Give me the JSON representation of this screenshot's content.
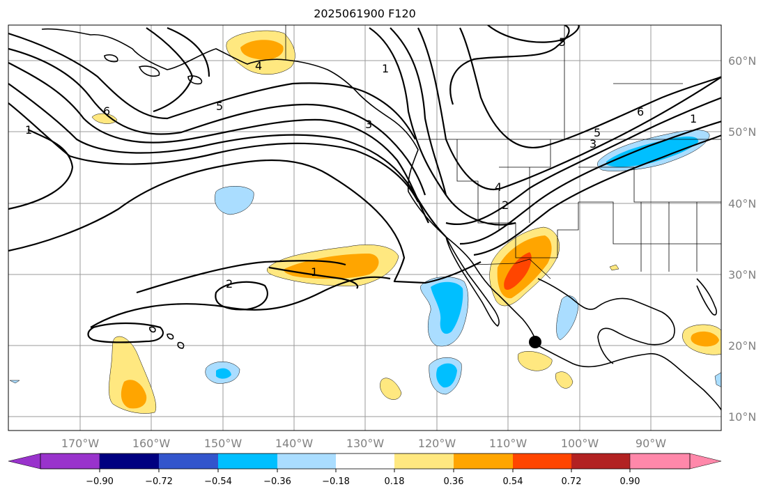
{
  "title": "2025061900 F120",
  "lat_labels": [
    "60°N",
    "50°N",
    "40°N",
    "30°N",
    "20°N",
    "10°N"
  ],
  "lon_labels": [
    "170°W",
    "160°W",
    "150°W",
    "140°W",
    "130°W",
    "120°W",
    "110°W",
    "100°W",
    "90°W"
  ],
  "contour_labels": [
    "6",
    "1",
    "5",
    "4",
    "3",
    "2",
    "1",
    "2",
    "4",
    "3",
    "5",
    "6",
    "1",
    "5",
    "1"
  ],
  "colorbar": {
    "tick_labels": [
      "−0.90",
      "−0.72",
      "−0.54",
      "−0.36",
      "−0.18",
      "0.18",
      "0.36",
      "0.54",
      "0.72",
      "0.90"
    ],
    "colors": [
      "#9933cc",
      "#000080",
      "#3355cc",
      "#00bfff",
      "#aaddff",
      "#ffffff",
      "#ffe880",
      "#ffa500",
      "#ff4500",
      "#b22222",
      "#ff88aa"
    ]
  },
  "marker": "storm-center"
}
